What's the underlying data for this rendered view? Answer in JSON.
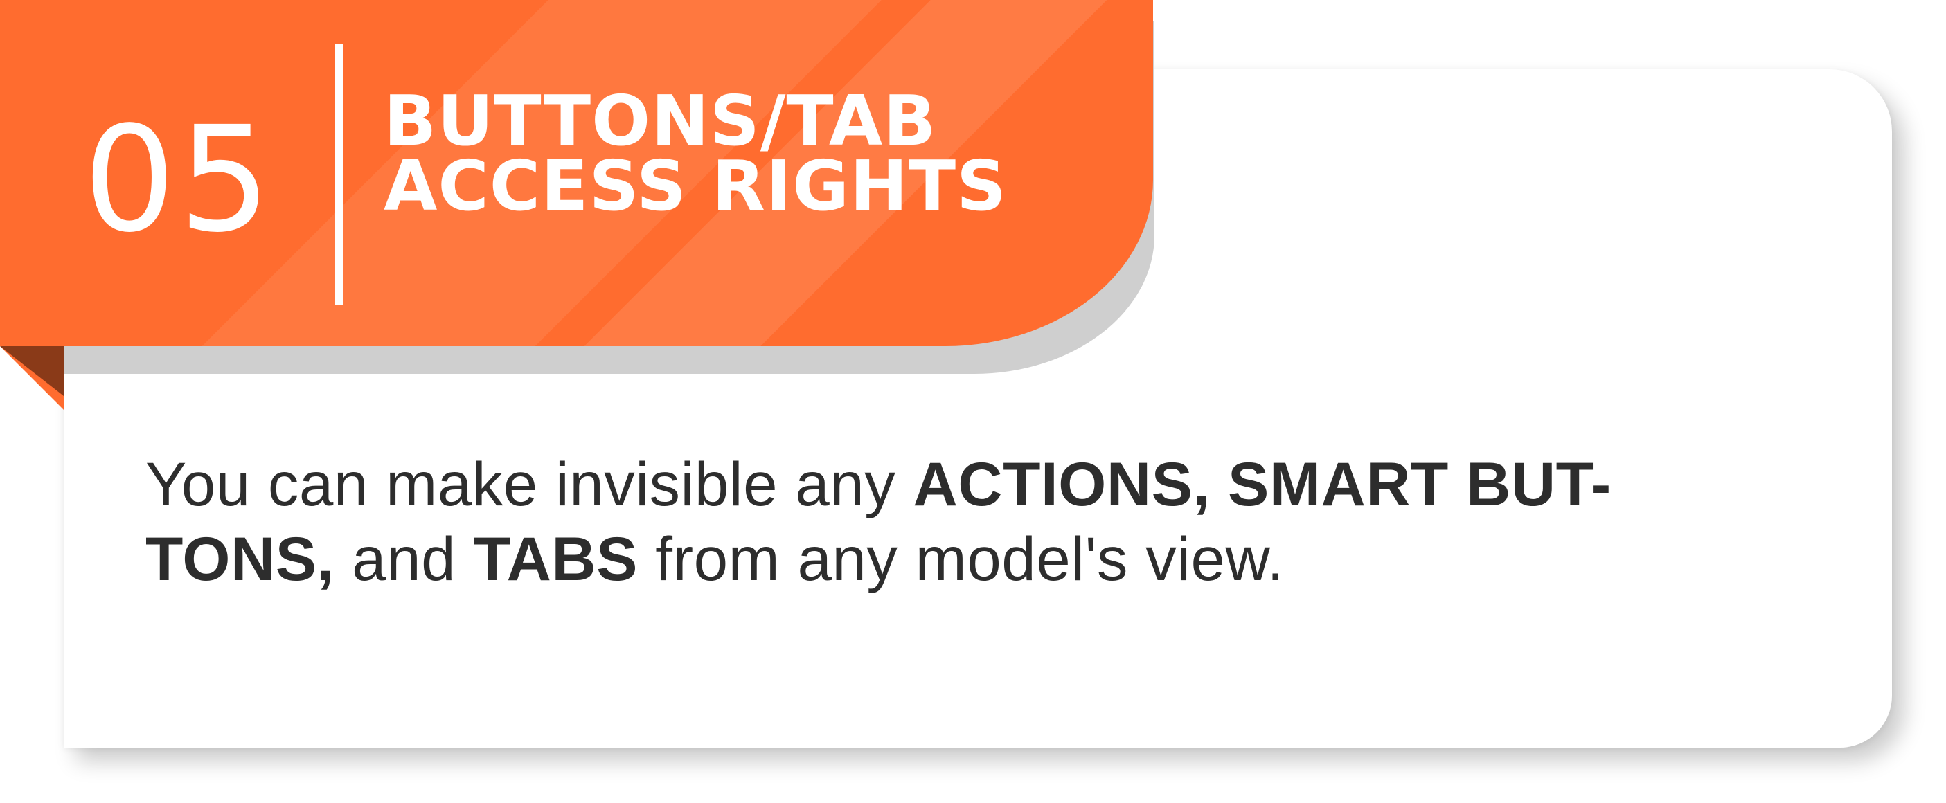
{
  "header": {
    "number": "05",
    "title_line1": "BUTTONS/TAB",
    "title_line2": "ACCESS RIGHTS"
  },
  "body": {
    "t1": "You can make invisible any ",
    "b1": "ACTIONS, SMART BUT-",
    "b2": "TONS,",
    "t2": " and ",
    "b3": "TABS",
    "t3": " from any model's view."
  },
  "colors": {
    "accent": "#ff6c2f",
    "text": "#2d2d2d",
    "fold_dark": "#8a3a18"
  }
}
